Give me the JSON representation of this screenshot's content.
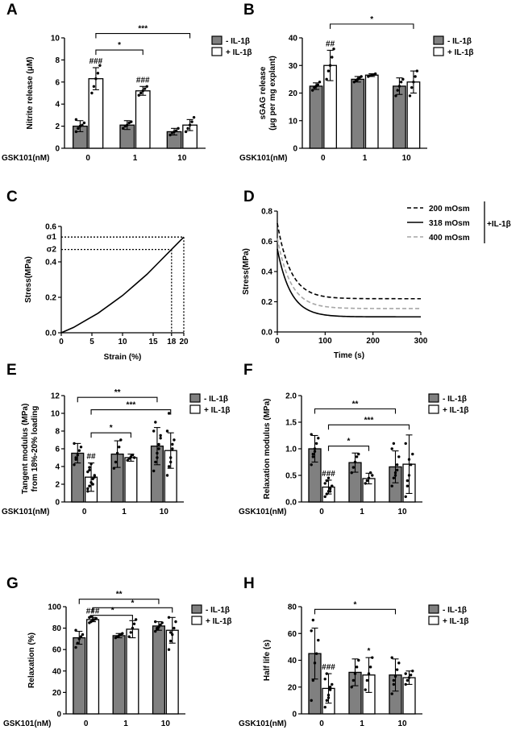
{
  "colors": {
    "minus_fill": "#808080",
    "plus_fill": "#ffffff",
    "stroke": "#000000",
    "series_400": "#a6a6a6"
  },
  "legend": {
    "minus": "- IL-1β",
    "plus": "+ IL-1β"
  },
  "chart_data": [
    {
      "panel": "A",
      "type": "bar",
      "categories": [
        "0",
        "1",
        "10"
      ],
      "xlabel": "GSK101(nM)",
      "ylabel": "Nitrite release (μM)",
      "ylim": [
        0,
        10
      ],
      "yticks": [
        0,
        2,
        4,
        6,
        8,
        10
      ],
      "series": [
        {
          "name": "- IL-1β",
          "values": [
            2.0,
            2.1,
            1.5
          ],
          "errors": [
            0.5,
            0.4,
            0.3
          ],
          "points": [
            [
              1.5,
              1.8,
              2.0,
              2.1,
              2.3,
              2.6
            ],
            [
              1.8,
              2.0,
              2.1,
              2.3,
              2.4
            ],
            [
              1.2,
              1.4,
              1.5,
              1.6,
              1.8
            ]
          ]
        },
        {
          "name": "+ IL-1β",
          "values": [
            6.3,
            5.2,
            2.1
          ],
          "errors": [
            1.0,
            0.4,
            0.5
          ],
          "points": [
            [
              5.0,
              5.6,
              6.3,
              6.8,
              7.5
            ],
            [
              4.8,
              5.0,
              5.2,
              5.4,
              5.6
            ],
            [
              1.5,
              1.8,
              2.1,
              2.4,
              2.8
            ]
          ]
        }
      ],
      "hashes": [
        "###",
        "###",
        ""
      ],
      "brackets": [
        {
          "from": [
            0,
            1
          ],
          "to": [
            2,
            1
          ],
          "label": "***",
          "y": 10.4
        },
        {
          "from": [
            0,
            1
          ],
          "to": [
            1,
            1
          ],
          "label": "*",
          "y": 8.9
        }
      ]
    },
    {
      "panel": "B",
      "type": "bar",
      "categories": [
        "0",
        "1",
        "10"
      ],
      "xlabel": "GSK101(nM)",
      "ylabel": [
        "sGAG release",
        "(μg per mg explant)"
      ],
      "ylim": [
        0,
        40
      ],
      "yticks": [
        0,
        10,
        20,
        30,
        40
      ],
      "series": [
        {
          "name": "- IL-1β",
          "values": [
            22.5,
            25,
            22.5
          ],
          "errors": [
            1.2,
            1.0,
            3
          ],
          "points": [
            [
              21,
              22,
              22.5,
              23,
              24
            ],
            [
              24,
              24.5,
              25,
              25.5,
              26
            ],
            [
              19,
              21,
              22.5,
              24,
              25
            ]
          ]
        },
        {
          "name": "+ IL-1β",
          "values": [
            30,
            26.5,
            24
          ],
          "errors": [
            5.5,
            0.5,
            4
          ],
          "points": [
            [
              25,
              28,
              30,
              33,
              36
            ],
            [
              26,
              26.3,
              26.5,
              26.7,
              27
            ],
            [
              19,
              22,
              24,
              26,
              28
            ]
          ]
        }
      ],
      "hashes": [
        "##",
        "",
        ""
      ],
      "brackets": [
        {
          "from": [
            0,
            1
          ],
          "to": [
            2,
            1
          ],
          "label": "*",
          "y": 45
        }
      ]
    },
    {
      "panel": "C",
      "type": "line",
      "xlabel": "Strain (%)",
      "ylabel": "Stress(MPa)",
      "xlim": [
        0,
        20
      ],
      "ylim": [
        0,
        0.6
      ],
      "xticks": [
        "0",
        "5",
        "10",
        "15",
        "18",
        "20"
      ],
      "yticks": [
        "0.0",
        "0.2",
        "0.4",
        "0.6"
      ],
      "x": [
        0,
        2,
        4,
        6,
        8,
        10,
        12,
        14,
        16,
        18,
        20
      ],
      "y": [
        0,
        0.03,
        0.07,
        0.11,
        0.16,
        0.21,
        0.27,
        0.33,
        0.4,
        0.47,
        0.54
      ],
      "markers": {
        "sigma1": "σ1",
        "sigma2": "σ2",
        "sigma1_value": 0.54,
        "sigma2_value": 0.47,
        "x_markers": [
          18,
          20
        ]
      }
    },
    {
      "panel": "D",
      "type": "line",
      "xlabel": "Time (s)",
      "ylabel": "Stress(MPa)",
      "xlim": [
        0,
        300
      ],
      "ylim": [
        0,
        0.8
      ],
      "xticks": [
        "0",
        "100",
        "200",
        "300"
      ],
      "yticks": [
        "0.0",
        "0.2",
        "0.4",
        "0.6",
        "0.8"
      ],
      "series": [
        {
          "name": "200 mOsm",
          "style": "dashed",
          "peak": 0.72,
          "plateau": 0.22
        },
        {
          "name": "318 mOsm",
          "style": "solid",
          "peak": 0.55,
          "plateau": 0.1
        },
        {
          "name": "400 mOsm",
          "style": "dashed-gray",
          "peak": 0.62,
          "plateau": 0.155
        }
      ],
      "group_label": "+IL-1β"
    },
    {
      "panel": "E",
      "type": "bar",
      "categories": [
        "0",
        "1",
        "10"
      ],
      "xlabel": "GSK101(nM)",
      "ylabel": [
        "Tangent modulus (MPa)",
        "from 18%-20% loading"
      ],
      "ylim": [
        0,
        12
      ],
      "yticks": [
        0,
        2,
        4,
        6,
        8,
        10,
        12
      ],
      "series": [
        {
          "name": "- IL-1β",
          "values": [
            5.5,
            5.4,
            6.3
          ],
          "errors": [
            1.1,
            1.5,
            2.1
          ],
          "points": [
            [
              4.2,
              4.8,
              5.3,
              5.8,
              6.2,
              6.6,
              5.0
            ],
            [
              3.8,
              4.5,
              5.5,
              6.2,
              7.0
            ],
            [
              3.5,
              4.5,
              5.5,
              6.5,
              7.2,
              8.0,
              9.0,
              5.0,
              6.0,
              7.5
            ]
          ]
        },
        {
          "name": "+ IL-1β",
          "values": [
            2.8,
            5.0,
            5.8
          ],
          "errors": [
            1.6,
            0.4,
            2.0
          ],
          "points": [
            [
              1.2,
              1.8,
              2.2,
              2.6,
              3.0,
              3.4,
              3.9,
              4.3,
              2.0,
              2.8,
              1.5,
              3.6
            ],
            [
              4.7,
              4.9,
              5.1,
              5.3,
              5.0
            ],
            [
              3.0,
              4.0,
              5.0,
              6.0,
              7.0,
              8.0,
              10.0,
              4.5,
              6.5
            ]
          ]
        }
      ],
      "hashes": [
        "##",
        "",
        ""
      ],
      "brackets": [
        {
          "from": [
            0,
            0
          ],
          "to": [
            2,
            0
          ],
          "label": "**",
          "y": 11.8
        },
        {
          "from": [
            0,
            1
          ],
          "to": [
            2,
            1
          ],
          "label": "***",
          "y": 10.4
        },
        {
          "from": [
            0,
            1
          ],
          "to": [
            1,
            1
          ],
          "label": "*",
          "y": 7.8
        }
      ]
    },
    {
      "panel": "F",
      "type": "bar",
      "categories": [
        "0",
        "1",
        "10"
      ],
      "xlabel": "GSK101(nM)",
      "ylabel": "Relaxation modulus (MPa)",
      "ylim": [
        0,
        2.0
      ],
      "yticks": [
        "0.0",
        "0.5",
        "1.0",
        "1.5",
        "2.0"
      ],
      "series": [
        {
          "name": "- IL-1β",
          "values": [
            1.0,
            0.74,
            0.66
          ],
          "errors": [
            0.25,
            0.18,
            0.3
          ],
          "points": [
            [
              0.7,
              0.85,
              1.0,
              1.1,
              1.2,
              1.27,
              0.9,
              0.95
            ],
            [
              0.55,
              0.65,
              0.75,
              0.85,
              0.9
            ],
            [
              0.3,
              0.45,
              0.55,
              0.7,
              0.85,
              1.0,
              1.1,
              0.5,
              0.6
            ]
          ]
        },
        {
          "name": "+ IL-1β",
          "values": [
            0.28,
            0.44,
            0.71
          ],
          "errors": [
            0.13,
            0.1,
            0.55
          ],
          "points": [
            [
              0.1,
              0.15,
              0.2,
              0.25,
              0.3,
              0.35,
              0.4,
              0.45,
              0.2,
              0.3
            ],
            [
              0.35,
              0.4,
              0.45,
              0.55,
              0.5
            ],
            [
              0.1,
              0.3,
              0.5,
              0.7,
              0.9,
              1.1,
              0.4,
              0.8
            ]
          ]
        }
      ],
      "hashes": [
        "###",
        "",
        ""
      ],
      "brackets": [
        {
          "from": [
            0,
            0
          ],
          "to": [
            2,
            0
          ],
          "label": "**",
          "y": 1.75
        },
        {
          "from": [
            0,
            1
          ],
          "to": [
            2,
            1
          ],
          "label": "***",
          "y": 1.45
        },
        {
          "from": [
            0,
            1
          ],
          "to": [
            1,
            1
          ],
          "label": "*",
          "y": 1.05
        }
      ]
    },
    {
      "panel": "G",
      "type": "bar",
      "categories": [
        "0",
        "1",
        "10"
      ],
      "xlabel": "GSK101(nM)",
      "ylabel": "Relaxation (%)",
      "ylim": [
        0,
        100
      ],
      "yticks": [
        0,
        20,
        40,
        60,
        80,
        100
      ],
      "series": [
        {
          "name": "- IL-1β",
          "values": [
            71,
            73,
            82
          ],
          "errors": [
            6,
            2,
            4
          ],
          "points": [
            [
              62,
              66,
              70,
              72,
              74,
              78
            ],
            [
              71,
              72,
              73,
              74,
              75
            ],
            [
              77,
              79,
              81,
              83,
              85,
              86,
              80
            ]
          ]
        },
        {
          "name": "+ IL-1β",
          "values": [
            88,
            79,
            78
          ],
          "errors": [
            2,
            8,
            12
          ],
          "points": [
            [
              85,
              86,
              87,
              88,
              89,
              90,
              91,
              88
            ],
            [
              72,
              76,
              80,
              84,
              88
            ],
            [
              60,
              68,
              74,
              80,
              86,
              90,
              76
            ]
          ]
        }
      ],
      "hashes": [
        "###",
        "",
        ""
      ],
      "brackets": [
        {
          "from": [
            0,
            0
          ],
          "to": [
            2,
            0
          ],
          "label": "**",
          "y": 107
        },
        {
          "from": [
            0,
            1
          ],
          "to": [
            2,
            1
          ],
          "label": "*",
          "y": 99
        },
        {
          "from": [
            0,
            1
          ],
          "to": [
            1,
            1
          ],
          "label": "*",
          "y": 92
        }
      ]
    },
    {
      "panel": "H",
      "type": "bar",
      "categories": [
        "0",
        "1",
        "10"
      ],
      "xlabel": "GSK101(nM)",
      "ylabel": "Half life (s)",
      "ylim": [
        0,
        80
      ],
      "yticks": [
        0,
        20,
        40,
        60,
        80
      ],
      "series": [
        {
          "name": "- IL-1β",
          "values": [
            45,
            31,
            29
          ],
          "errors": [
            19,
            10,
            12
          ],
          "points": [
            [
              10,
              25,
              38,
              45,
              55,
              62,
              70
            ],
            [
              20,
              25,
              30,
              35,
              40
            ],
            [
              15,
              22,
              28,
              33,
              38,
              42,
              25
            ]
          ]
        },
        {
          "name": "+ IL-1β",
          "values": [
            19,
            29,
            27
          ],
          "errors": [
            11,
            13,
            5
          ],
          "points": [
            [
              5,
              10,
              14,
              18,
              22,
              26,
              30,
              12,
              20
            ],
            [
              18,
              25,
              30,
              35,
              42
            ],
            [
              22,
              25,
              27,
              29,
              32,
              30
            ]
          ]
        }
      ],
      "hashes": [
        "###",
        "*",
        ""
      ],
      "brackets": [
        {
          "from": [
            0,
            0
          ],
          "to": [
            2,
            0
          ],
          "label": "*",
          "y": 78
        }
      ]
    }
  ]
}
